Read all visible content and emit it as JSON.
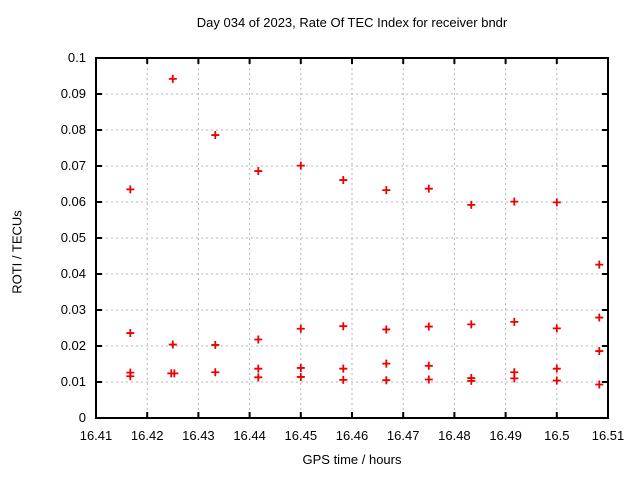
{
  "chart_data": {
    "type": "scatter",
    "title": "Day 034 of 2023, Rate Of TEC Index for receiver bndr",
    "xlabel": "GPS time / hours",
    "ylabel": "ROTI / TECUs",
    "xlim": [
      16.41,
      16.51
    ],
    "ylim": [
      0,
      0.1
    ],
    "grid": true,
    "legend": "none",
    "marker": {
      "shape": "plus",
      "color": "#ee0000",
      "size": 8
    },
    "axis_color": "#000000",
    "grid_color": "#b4b4b4",
    "xticks": [
      {
        "value": 16.41,
        "label": "16.41"
      },
      {
        "value": 16.42,
        "label": "16.42"
      },
      {
        "value": 16.43,
        "label": "16.43"
      },
      {
        "value": 16.44,
        "label": "16.44"
      },
      {
        "value": 16.45,
        "label": "16.45"
      },
      {
        "value": 16.46,
        "label": "16.46"
      },
      {
        "value": 16.47,
        "label": "16.47"
      },
      {
        "value": 16.48,
        "label": "16.48"
      },
      {
        "value": 16.49,
        "label": "16.49"
      },
      {
        "value": 16.5,
        "label": "16.5"
      },
      {
        "value": 16.51,
        "label": "16.51"
      }
    ],
    "yticks": [
      {
        "value": 0,
        "label": "0"
      },
      {
        "value": 0.01,
        "label": "0.01"
      },
      {
        "value": 0.02,
        "label": "0.02"
      },
      {
        "value": 0.03,
        "label": "0.03"
      },
      {
        "value": 0.04,
        "label": "0.04"
      },
      {
        "value": 0.05,
        "label": "0.05"
      },
      {
        "value": 0.06,
        "label": "0.06"
      },
      {
        "value": 0.07,
        "label": "0.07"
      },
      {
        "value": 0.08,
        "label": "0.08"
      },
      {
        "value": 0.09,
        "label": "0.09"
      },
      {
        "value": 0.1,
        "label": "0.1"
      }
    ],
    "series": [
      {
        "name": "ROTI",
        "points": [
          [
            16.4167,
            0.0635
          ],
          [
            16.4167,
            0.0236
          ],
          [
            16.4167,
            0.0126
          ],
          [
            16.4167,
            0.0116
          ],
          [
            16.425,
            0.0942
          ],
          [
            16.425,
            0.0204
          ],
          [
            16.4247,
            0.0124
          ],
          [
            16.4253,
            0.0124
          ],
          [
            16.4333,
            0.0786
          ],
          [
            16.4333,
            0.0203
          ],
          [
            16.4333,
            0.0127
          ],
          [
            16.4417,
            0.0686
          ],
          [
            16.4417,
            0.0218
          ],
          [
            16.4417,
            0.0137
          ],
          [
            16.4417,
            0.0113
          ],
          [
            16.45,
            0.0701
          ],
          [
            16.45,
            0.0248
          ],
          [
            16.45,
            0.0139
          ],
          [
            16.45,
            0.0114
          ],
          [
            16.4583,
            0.0661
          ],
          [
            16.4583,
            0.0255
          ],
          [
            16.4583,
            0.0137
          ],
          [
            16.4583,
            0.0106
          ],
          [
            16.4667,
            0.0633
          ],
          [
            16.4667,
            0.0246
          ],
          [
            16.4667,
            0.0151
          ],
          [
            16.4667,
            0.0105
          ],
          [
            16.475,
            0.0637
          ],
          [
            16.475,
            0.0254
          ],
          [
            16.475,
            0.0145
          ],
          [
            16.475,
            0.0107
          ],
          [
            16.4833,
            0.0592
          ],
          [
            16.4833,
            0.026
          ],
          [
            16.4833,
            0.0111
          ],
          [
            16.4833,
            0.0103
          ],
          [
            16.4917,
            0.0601
          ],
          [
            16.4917,
            0.0267
          ],
          [
            16.4917,
            0.0127
          ],
          [
            16.4917,
            0.011
          ],
          [
            16.5,
            0.0599
          ],
          [
            16.5,
            0.0249
          ],
          [
            16.5,
            0.0137
          ],
          [
            16.5,
            0.0104
          ],
          [
            16.5083,
            0.0426
          ],
          [
            16.5083,
            0.0279
          ],
          [
            16.5083,
            0.0186
          ],
          [
            16.5083,
            0.0093
          ]
        ]
      }
    ]
  }
}
